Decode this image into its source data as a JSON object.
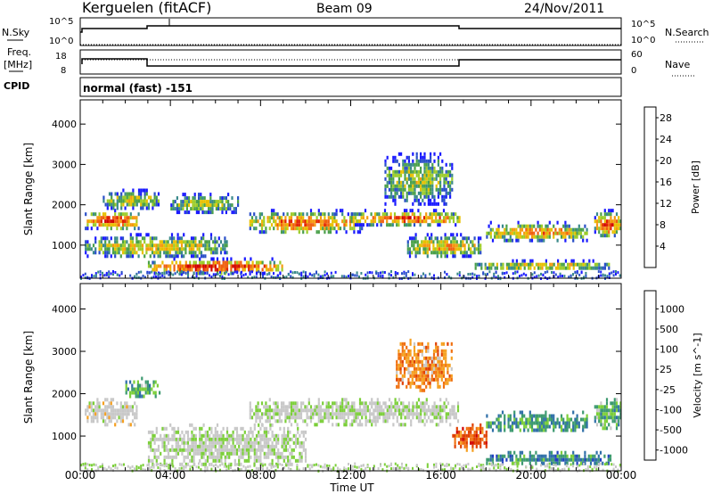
{
  "header": {
    "station": "Kerguelen (fitACF)",
    "beam": "Beam 09",
    "date": "24/Nov/2011"
  },
  "panels": {
    "nsky_label": "N.Sky",
    "nsky_ticks": [
      "10^5",
      "10^0"
    ],
    "nsearch_label": "N.Search",
    "nsearch_ticks": [
      "10^5",
      "10^0"
    ],
    "freq_label": "Freq.",
    "freq_unit": "[MHz]",
    "freq_ticks": [
      "18",
      "8"
    ],
    "nave_label": "Nave",
    "nave_ticks": [
      "60",
      "0"
    ],
    "cpid_label": "CPID",
    "cpid_text": "normal (fast) -151"
  },
  "chart_data": [
    {
      "type": "heatmap",
      "name": "power-panel",
      "ylabel": "Slant Range [km]",
      "xlabel": "",
      "y_ticks": [
        1000,
        2000,
        3000,
        4000
      ],
      "ylim": [
        180,
        4600
      ],
      "x_ticks": [
        "00:00",
        "04:00",
        "08:00",
        "12:00",
        "16:00",
        "20:00",
        "00:00"
      ],
      "xlim_hours": [
        0,
        24
      ],
      "colorbar": {
        "label": "Power [dB]",
        "ticks": [
          "4",
          "8",
          "12",
          "16",
          "20",
          "24",
          "28"
        ],
        "colors": [
          "#1a1aff",
          "#2a4fc8",
          "#3a8a8a",
          "#4aa04a",
          "#9ccc2a",
          "#e8c000",
          "#f59a10",
          "#f06010",
          "#e02000",
          "#d00000"
        ]
      },
      "regions": [
        {
          "t0": 0.2,
          "t1": 2.6,
          "r0": 1400,
          "r1": 1900,
          "level": 0.85
        },
        {
          "t0": 0.2,
          "t1": 6.5,
          "r0": 700,
          "r1": 1300,
          "level": 0.55
        },
        {
          "t0": 1.0,
          "t1": 3.5,
          "r0": 1900,
          "r1": 2400,
          "level": 0.5
        },
        {
          "t0": 3.0,
          "t1": 9.0,
          "r0": 300,
          "r1": 700,
          "level": 0.9
        },
        {
          "t0": 4.0,
          "t1": 7.0,
          "r0": 1800,
          "r1": 2300,
          "level": 0.45
        },
        {
          "t0": 7.5,
          "t1": 12.5,
          "r0": 1300,
          "r1": 1900,
          "level": 0.75
        },
        {
          "t0": 12.0,
          "t1": 16.8,
          "r0": 1500,
          "r1": 1900,
          "level": 0.8
        },
        {
          "t0": 13.5,
          "t1": 16.5,
          "r0": 2000,
          "r1": 3300,
          "level": 0.45
        },
        {
          "t0": 14.5,
          "t1": 17.8,
          "r0": 700,
          "r1": 1300,
          "level": 0.6
        },
        {
          "t0": 18.0,
          "t1": 22.5,
          "r0": 1100,
          "r1": 1600,
          "level": 0.65
        },
        {
          "t0": 22.8,
          "t1": 24.0,
          "r0": 1200,
          "r1": 1900,
          "level": 0.8
        },
        {
          "t0": 17.5,
          "t1": 23.5,
          "r0": 400,
          "r1": 650,
          "level": 0.55
        }
      ]
    },
    {
      "type": "heatmap",
      "name": "velocity-panel",
      "ylabel": "Slant Range [km]",
      "xlabel": "Time UT",
      "y_ticks": [
        1000,
        2000,
        3000,
        4000
      ],
      "ylim": [
        180,
        4600
      ],
      "x_ticks": [
        "00:00",
        "04:00",
        "08:00",
        "12:00",
        "16:00",
        "20:00",
        "00:00"
      ],
      "xlim_hours": [
        0,
        24
      ],
      "colorbar": {
        "label": "Velocity [m s^-1]",
        "ticks": [
          "1000",
          "500",
          "100",
          "25",
          "-25",
          "-100",
          "-500",
          "-1000"
        ],
        "colors": [
          "#2040c0",
          "#2f6fa8",
          "#3d9a70",
          "#7ccf3a",
          "#c8c8c8",
          "#c8c8c8",
          "#f5a020",
          "#f07010",
          "#e04000",
          "#d00000"
        ]
      },
      "regions": [
        {
          "t0": 0.2,
          "t1": 2.5,
          "r0": 1300,
          "r1": 1900,
          "level": 0.5
        },
        {
          "t0": 2.0,
          "t1": 3.5,
          "r0": 1900,
          "r1": 2400,
          "level": 0.3
        },
        {
          "t0": 3.0,
          "t1": 10.0,
          "r0": 300,
          "r1": 1300,
          "level": 0.45
        },
        {
          "t0": 7.5,
          "t1": 16.8,
          "r0": 1300,
          "r1": 1900,
          "level": 0.45
        },
        {
          "t0": 14.0,
          "t1": 16.5,
          "r0": 2100,
          "r1": 3300,
          "level": 0.7
        },
        {
          "t0": 16.5,
          "t1": 18.0,
          "r0": 700,
          "r1": 1300,
          "level": 0.8
        },
        {
          "t0": 18.0,
          "t1": 22.5,
          "r0": 1100,
          "r1": 1600,
          "level": 0.25
        },
        {
          "t0": 22.8,
          "t1": 24.0,
          "r0": 1200,
          "r1": 1900,
          "level": 0.3
        },
        {
          "t0": 18.0,
          "t1": 23.5,
          "r0": 350,
          "r1": 650,
          "level": 0.2
        }
      ]
    }
  ]
}
